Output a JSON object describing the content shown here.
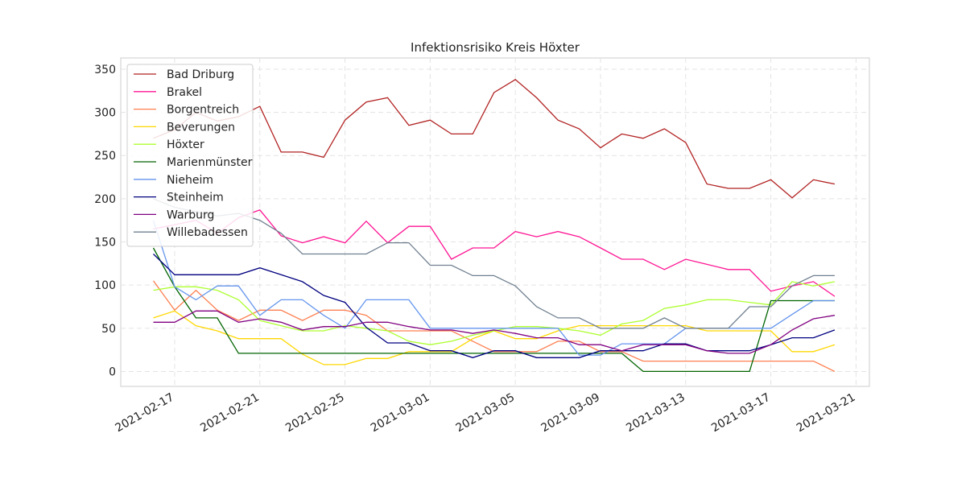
{
  "chart_data": {
    "type": "line",
    "title": "Infektionsrisiko Kreis Höxter",
    "x": [
      "2021-02-16",
      "2021-02-17",
      "2021-02-18",
      "2021-02-19",
      "2021-02-20",
      "2021-02-21",
      "2021-02-22",
      "2021-02-23",
      "2021-02-24",
      "2021-02-25",
      "2021-02-26",
      "2021-02-27",
      "2021-02-28",
      "2021-03-01",
      "2021-03-02",
      "2021-03-03",
      "2021-03-04",
      "2021-03-05",
      "2021-03-06",
      "2021-03-07",
      "2021-03-08",
      "2021-03-09",
      "2021-03-10",
      "2021-03-11",
      "2021-03-12",
      "2021-03-13",
      "2021-03-14",
      "2021-03-15",
      "2021-03-16",
      "2021-03-17",
      "2021-03-18",
      "2021-03-19",
      "2021-03-20"
    ],
    "xlim": [
      "2021-02-14T11:15:00Z",
      "2021-03-21T15:05:00Z"
    ],
    "xticks": [
      "2021-02-17",
      "2021-02-21",
      "2021-02-25",
      "2021-03-01",
      "2021-03-05",
      "2021-03-09",
      "2021-03-13",
      "2021-03-17",
      "2021-03-21"
    ],
    "ylim": [
      -17.3,
      363
    ],
    "yticks": [
      0,
      50,
      100,
      150,
      200,
      250,
      300,
      350
    ],
    "grid": true,
    "legend": "upper left",
    "series": [
      {
        "name": "Bad Driburg",
        "color": "#b22222",
        "values": [
          270,
          280,
          300,
          290,
          295,
          307,
          254,
          254,
          248,
          291,
          312,
          317,
          285,
          291,
          275,
          275,
          323,
          338,
          317,
          291,
          281,
          259,
          275,
          270,
          281,
          265,
          217,
          212,
          212,
          222,
          201,
          222,
          217
        ]
      },
      {
        "name": "Brakel",
        "color": "#ff1493",
        "values": [
          165,
          170,
          175,
          160,
          178,
          187,
          157,
          149,
          156,
          149,
          174,
          149,
          168,
          168,
          130,
          143,
          143,
          162,
          156,
          162,
          156,
          143,
          130,
          130,
          118,
          130,
          124,
          118,
          118,
          93,
          99,
          104,
          87
        ]
      },
      {
        "name": "Borgentreich",
        "color": "#ff7f50",
        "values": [
          105,
          71,
          94,
          71,
          59,
          71,
          71,
          59,
          71,
          71,
          65,
          47,
          47,
          47,
          47,
          35,
          23,
          23,
          23,
          35,
          35,
          23,
          23,
          12,
          12,
          12,
          12,
          12,
          12,
          12,
          12,
          12,
          0
        ]
      },
      {
        "name": "Beverungen",
        "color": "#ffd700",
        "values": [
          62,
          70,
          53,
          47,
          38,
          38,
          38,
          20,
          8,
          8,
          15,
          15,
          23,
          23,
          23,
          38,
          47,
          38,
          38,
          47,
          53,
          53,
          53,
          53,
          53,
          53,
          47,
          47,
          47,
          47,
          23,
          23,
          31
        ]
      },
      {
        "name": "Höxter",
        "color": "#adff2f",
        "values": [
          94,
          98,
          98,
          94,
          83,
          59,
          53,
          47,
          47,
          53,
          50,
          47,
          35,
          31,
          35,
          42,
          47,
          52,
          52,
          50,
          47,
          42,
          55,
          59,
          73,
          77,
          83,
          83,
          80,
          77,
          104,
          99,
          104
        ]
      },
      {
        "name": "Marienmünster",
        "color": "#006400",
        "values": [
          143,
          98,
          62,
          62,
          21,
          21,
          21,
          21,
          21,
          21,
          21,
          21,
          21,
          21,
          21,
          21,
          21,
          21,
          21,
          21,
          21,
          21,
          21,
          0,
          0,
          0,
          0,
          0,
          0,
          82,
          82,
          82,
          82
        ]
      },
      {
        "name": "Nieheim",
        "color": "#6495ed",
        "values": [
          175,
          98,
          83,
          99,
          99,
          65,
          83,
          83,
          65,
          50,
          83,
          83,
          83,
          50,
          50,
          50,
          50,
          50,
          50,
          50,
          19,
          19,
          32,
          32,
          32,
          50,
          50,
          50,
          50,
          50,
          66,
          82,
          82
        ]
      },
      {
        "name": "Steinheim",
        "color": "#000080",
        "values": [
          136,
          112,
          112,
          112,
          112,
          120,
          112,
          104,
          88,
          80,
          51,
          33,
          33,
          24,
          24,
          16,
          24,
          24,
          16,
          16,
          16,
          24,
          24,
          24,
          32,
          32,
          24,
          24,
          24,
          31,
          39,
          39,
          48
        ]
      },
      {
        "name": "Warburg",
        "color": "#800080",
        "values": [
          57,
          57,
          70,
          70,
          57,
          61,
          57,
          48,
          52,
          52,
          57,
          57,
          52,
          48,
          48,
          44,
          48,
          44,
          39,
          39,
          31,
          31,
          24,
          31,
          31,
          31,
          24,
          21,
          21,
          31,
          48,
          61,
          65
        ]
      },
      {
        "name": "Willebadessen",
        "color": "#708090",
        "values": [
          200,
          190,
          185,
          180,
          183,
          175,
          160,
          136,
          136,
          136,
          136,
          149,
          149,
          123,
          123,
          111,
          111,
          99,
          75,
          62,
          62,
          50,
          50,
          50,
          62,
          50,
          50,
          50,
          75,
          75,
          99,
          111,
          111
        ]
      }
    ]
  }
}
